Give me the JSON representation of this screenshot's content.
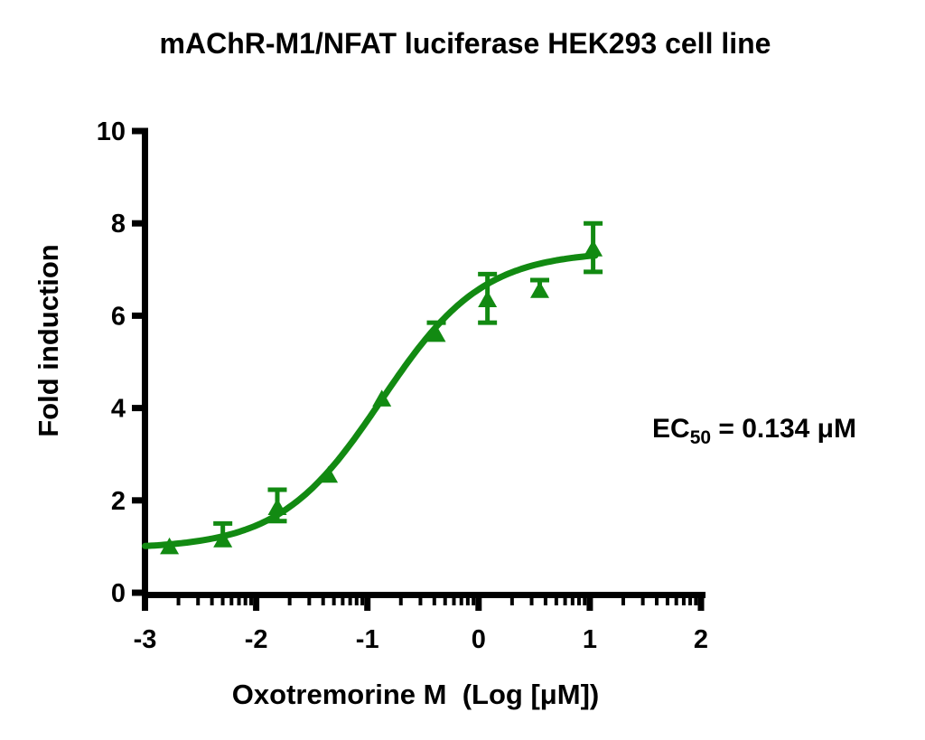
{
  "figure": {
    "background": "#ffffff",
    "text_color": "#000000"
  },
  "annotation": {
    "prefix": "EC",
    "subscript": "50",
    "suffix": " = 0.134 μM"
  },
  "chart_data": {
    "type": "scatter",
    "title": "mAChR-M1/NFAT luciferase HEK293 cell line",
    "xlabel": "Oxotremorine M  (Log [μM])",
    "ylabel": "Fold induction",
    "x_scale": "log10 (x values are Log10 of concentration in μM)",
    "xlim": [
      -3,
      2
    ],
    "ylim": [
      0,
      10
    ],
    "x_ticks": [
      -3,
      -2,
      -1,
      0,
      1,
      2
    ],
    "y_ticks": [
      0,
      2,
      4,
      6,
      8,
      10
    ],
    "x_minor_ticks": "log decades (2-9 within each decade)",
    "grid": false,
    "legend": "none",
    "accent_color": "#128a12",
    "axis_color": "#000000",
    "series": [
      {
        "name": "Oxotremorine M",
        "marker": "triangle-up",
        "color": "#128a12",
        "points": [
          {
            "x": -2.78,
            "y": 1.0,
            "err_up": 0.0,
            "err_down": 0.0
          },
          {
            "x": -2.3,
            "y": 1.15,
            "err_up": 0.35,
            "err_down": 0.0
          },
          {
            "x": -1.81,
            "y": 1.85,
            "err_up": 0.38,
            "err_down": 0.3
          },
          {
            "x": -1.35,
            "y": 2.55,
            "err_up": 0.0,
            "err_down": 0.0
          },
          {
            "x": -0.87,
            "y": 4.2,
            "err_up": 0.0,
            "err_down": 0.0
          },
          {
            "x": -0.38,
            "y": 5.6,
            "err_up": 0.25,
            "err_down": 0.0
          },
          {
            "x": 0.08,
            "y": 6.35,
            "err_up": 0.55,
            "err_down": 0.5
          },
          {
            "x": 0.55,
            "y": 6.55,
            "err_up": 0.22,
            "err_down": 0.0
          },
          {
            "x": 1.03,
            "y": 7.45,
            "err_up": 0.55,
            "err_down": 0.5
          }
        ]
      }
    ],
    "fit_curve": {
      "model": "four-parameter logistic (dose-response)",
      "bottom": 0.95,
      "top": 7.4,
      "log_ec50": -0.873,
      "hill": 0.95,
      "x_start": -3.0,
      "x_end": 1.05,
      "color": "#128a12"
    },
    "ec50_label": "EC50 = 0.134 μM",
    "ec50_um": 0.134
  }
}
